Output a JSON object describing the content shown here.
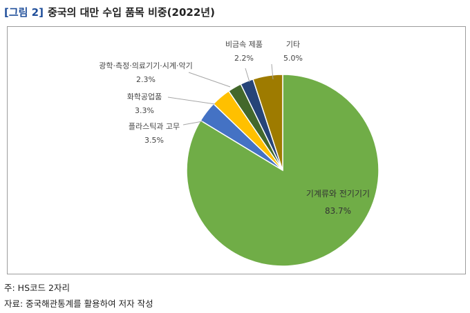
{
  "title_tag": "[그림 2]",
  "title": "중국의 대만 수입 품목 비중(2022년)",
  "footnote": "주: HS코드 2자리",
  "source": "자료: 중국해관통계를 활용하여 저자 작성",
  "chart_data": {
    "type": "pie",
    "title": "",
    "slices": [
      {
        "name": "기계류와 전기기기",
        "value_label": "83.7%",
        "value": 83.7,
        "color": "#70ad47"
      },
      {
        "name": "플라스틱과 고무",
        "value_label": "3.5%",
        "value": 3.5,
        "color": "#4472c4"
      },
      {
        "name": "화학공업품",
        "value_label": "3.3%",
        "value": 3.3,
        "color": "#ffc000"
      },
      {
        "name": "광학·측정·의료기기·시계·악기",
        "value_label": "2.3%",
        "value": 2.3,
        "color": "#43682b"
      },
      {
        "name": "비금속 제품",
        "value_label": "2.2%",
        "value": 2.2,
        "color": "#264478"
      },
      {
        "name": "기타",
        "value_label": "5.0%",
        "value": 5.0,
        "color": "#9e7b00"
      }
    ]
  }
}
